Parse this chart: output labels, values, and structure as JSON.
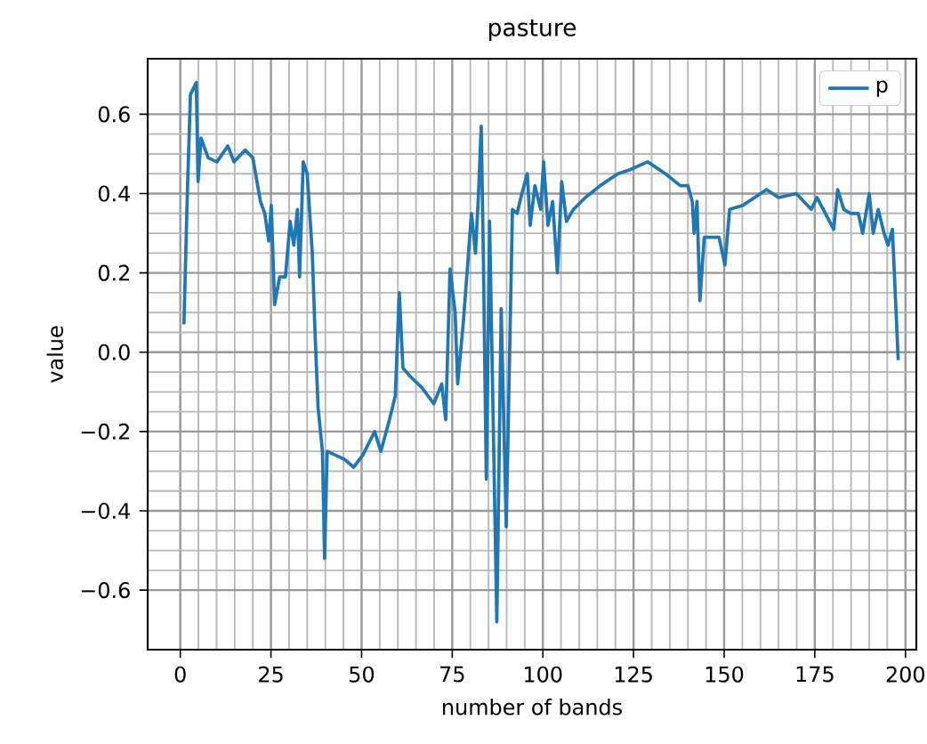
{
  "chart_data": {
    "type": "line",
    "title": "pasture",
    "xlabel": "number of bands",
    "ylabel": "value",
    "xlim": [
      -9,
      203
    ],
    "ylim": [
      -0.75,
      0.74
    ],
    "xticks": [
      0,
      25,
      50,
      75,
      100,
      125,
      150,
      175,
      200
    ],
    "yticks": [
      {
        "value": -0.6,
        "label": "−0.6"
      },
      {
        "value": -0.4,
        "label": "−0.4"
      },
      {
        "value": -0.2,
        "label": "−0.2"
      },
      {
        "value": 0,
        "label": "0.0"
      },
      {
        "value": 0.2,
        "label": "0.2"
      },
      {
        "value": 0.4,
        "label": "0.4"
      },
      {
        "value": 0.6,
        "label": "0.6"
      }
    ],
    "grid": true,
    "legend": "top right",
    "marker": "none",
    "line_style": "solid",
    "series": [
      {
        "name": "p",
        "color": "#1f77b4",
        "x": [
          1,
          2,
          2.8,
          4.4,
          4.9,
          5.7,
          7.7,
          10.1,
          13.1,
          14.8,
          17.9,
          20,
          22.1,
          23.3,
          24.4,
          25.1,
          26,
          27.4,
          29,
          30.3,
          31.3,
          32.3,
          32.9,
          33.9,
          35,
          36.4,
          37.2,
          38,
          39.2,
          39.8,
          40.5,
          42.9,
          45.3,
          47.8,
          50.3,
          53.6,
          55.3,
          57.7,
          59.3,
          60.4,
          61.4,
          63.3,
          66.7,
          69.9,
          72.1,
          73.2,
          74.4,
          75.8,
          76.5,
          78.1,
          80.3,
          81.4,
          82.2,
          83,
          83.6,
          84.4,
          85.3,
          87.3,
          88.5,
          89.9,
          91.6,
          92.9,
          94.2,
          95.7,
          96.5,
          97.8,
          99.4,
          100.2,
          101.4,
          102.7,
          104,
          105.2,
          106.5,
          108.4,
          111.7,
          115.8,
          120.7,
          124,
          128.9,
          133.8,
          137.9,
          140,
          141.2,
          141.7,
          142.5,
          143.3,
          144.5,
          146.9,
          148.6,
          150.2,
          151.5,
          155.1,
          158.4,
          161.7,
          165,
          169.9,
          174,
          175.6,
          180.2,
          181.3,
          183,
          184.9,
          187,
          188.2,
          190,
          191.1,
          192.5,
          194.1,
          195.2,
          196.4,
          198
        ],
        "values": [
          0.07,
          0.42,
          0.65,
          0.68,
          0.43,
          0.54,
          0.49,
          0.48,
          0.52,
          0.48,
          0.51,
          0.49,
          0.38,
          0.35,
          0.28,
          0.37,
          0.12,
          0.19,
          0.19,
          0.33,
          0.27,
          0.36,
          0.19,
          0.48,
          0.45,
          0.25,
          0.04,
          -0.14,
          -0.25,
          -0.52,
          -0.25,
          -0.26,
          -0.27,
          -0.29,
          -0.26,
          -0.2,
          -0.25,
          -0.17,
          -0.11,
          0.15,
          -0.04,
          -0.06,
          -0.09,
          -0.13,
          -0.08,
          -0.17,
          0.21,
          0.1,
          -0.08,
          0.08,
          0.35,
          0.25,
          0.39,
          0.57,
          0.23,
          -0.32,
          0.33,
          -0.68,
          0.11,
          -0.44,
          0.36,
          0.35,
          0.4,
          0.45,
          0.32,
          0.42,
          0.36,
          0.48,
          0.32,
          0.38,
          0.2,
          0.43,
          0.33,
          0.36,
          0.39,
          0.42,
          0.45,
          0.46,
          0.48,
          0.45,
          0.42,
          0.42,
          0.38,
          0.3,
          0.38,
          0.13,
          0.29,
          0.29,
          0.29,
          0.22,
          0.36,
          0.37,
          0.39,
          0.41,
          0.39,
          0.4,
          0.36,
          0.39,
          0.31,
          0.41,
          0.36,
          0.35,
          0.35,
          0.3,
          0.4,
          0.3,
          0.36,
          0.3,
          0.27,
          0.31,
          -0.02
        ]
      }
    ]
  }
}
